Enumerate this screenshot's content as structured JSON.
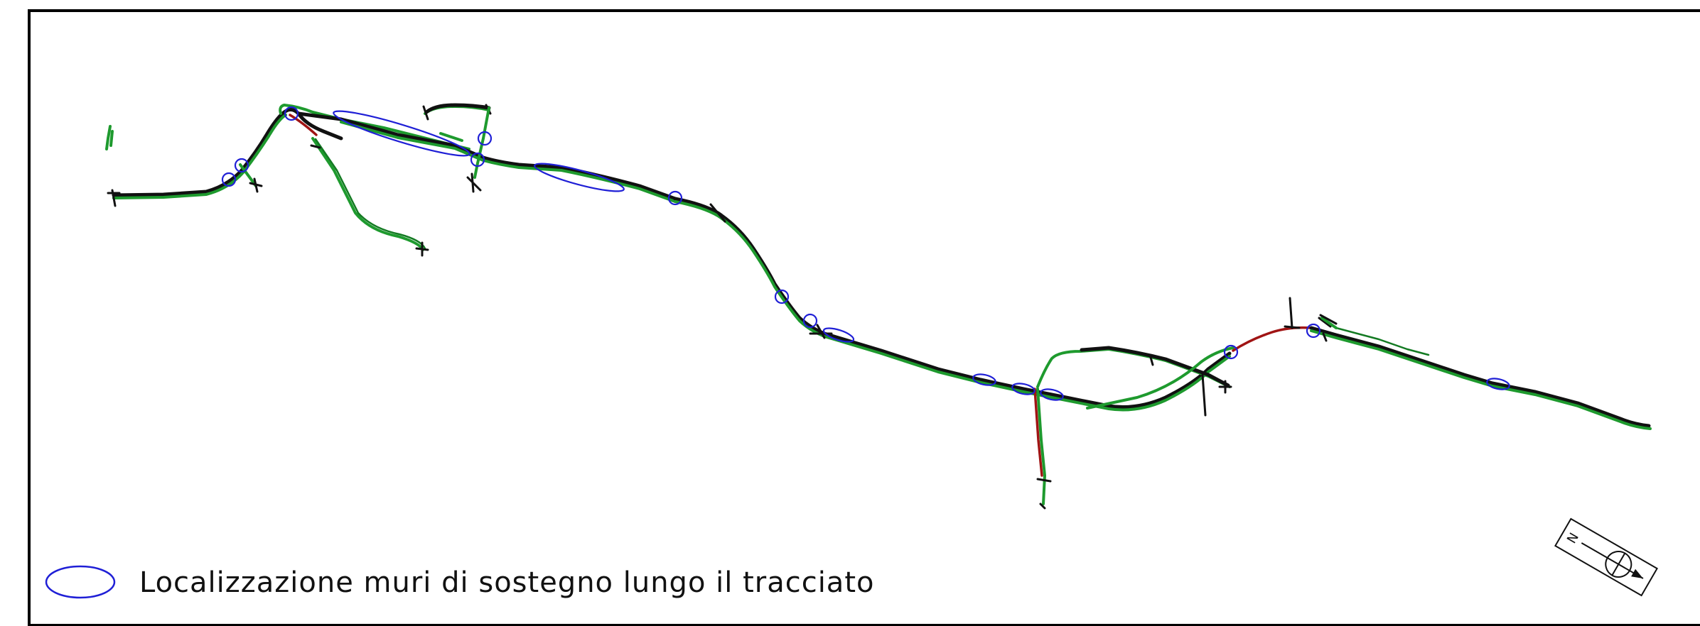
{
  "legend": {
    "label": "Localizzazione muri di sostegno lungo il tracciato",
    "symbol": "ellipse",
    "symbol_color": "#1f1fd6"
  },
  "compass": {
    "label": "N",
    "icon": "north-arrow-icon"
  },
  "colors": {
    "road_edge": "#1e9a2e",
    "road_core": "#111111",
    "road_variant": "#a01414",
    "wall_marker": "#1f1fd6",
    "frame": "#000000"
  }
}
